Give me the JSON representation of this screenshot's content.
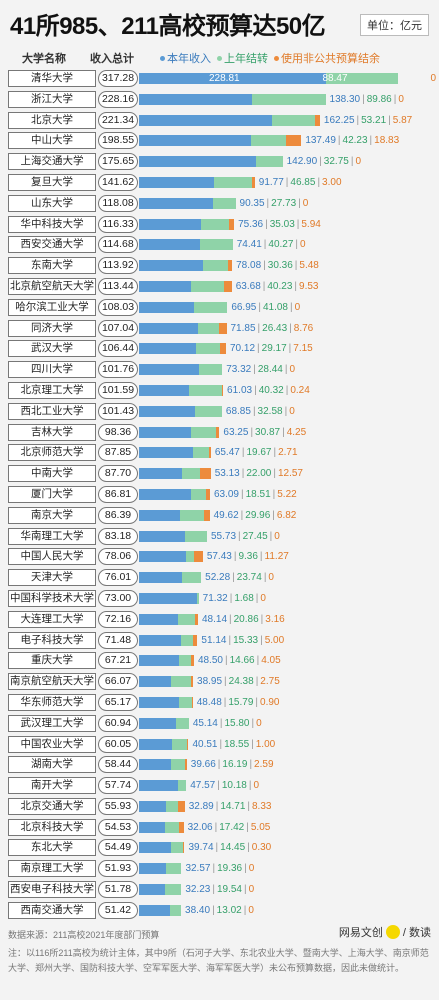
{
  "title": "41所985、211高校预算达50亿",
  "unit": "单位：亿元",
  "headers": {
    "name": "大学名称",
    "total": "收入总计"
  },
  "legend": [
    {
      "label": "本年收入",
      "color": "#5b9bd5",
      "text_color": "#3a7bbd"
    },
    {
      "label": "上年结转",
      "color": "#8fd3a8",
      "text_color": "#36a06a"
    },
    {
      "label": "使用非公共预算结余",
      "color": "#ed8b3c",
      "text_color": "#e07a28"
    }
  ],
  "chart_data": {
    "type": "bar",
    "stacked": true,
    "orientation": "horizontal",
    "unit": "亿元",
    "series": [
      {
        "name": "本年收入",
        "color": "#5b9bd5"
      },
      {
        "name": "上年结转",
        "color": "#8fd3a8"
      },
      {
        "name": "使用非公共预算结余",
        "color": "#ed8b3c"
      }
    ],
    "rows": [
      {
        "name": "清华大学",
        "total": "317.28",
        "income": 228.81,
        "carry": 88.47,
        "surplus": 0,
        "income_label": "228.81",
        "carry_label": "88.47",
        "surplus_label": "0"
      },
      {
        "name": "浙江大学",
        "total": "228.16",
        "income": 138.3,
        "carry": 89.86,
        "surplus": 0,
        "income_label": "138.30",
        "carry_label": "89.86",
        "surplus_label": "0"
      },
      {
        "name": "北京大学",
        "total": "221.34",
        "income": 162.25,
        "carry": 53.21,
        "surplus": 5.87,
        "income_label": "162.25",
        "carry_label": "53.21",
        "surplus_label": "5.87"
      },
      {
        "name": "中山大学",
        "total": "198.55",
        "income": 137.49,
        "carry": 42.23,
        "surplus": 18.83,
        "income_label": "137.49",
        "carry_label": "42.23",
        "surplus_label": "18.83"
      },
      {
        "name": "上海交通大学",
        "total": "175.65",
        "income": 142.9,
        "carry": 32.75,
        "surplus": 0,
        "income_label": "142.90",
        "carry_label": "32.75",
        "surplus_label": "0"
      },
      {
        "name": "复旦大学",
        "total": "141.62",
        "income": 91.77,
        "carry": 46.85,
        "surplus": 3.0,
        "income_label": "91.77",
        "carry_label": "46.85",
        "surplus_label": "3.00"
      },
      {
        "name": "山东大学",
        "total": "118.08",
        "income": 90.35,
        "carry": 27.73,
        "surplus": 0,
        "income_label": "90.35",
        "carry_label": "27.73",
        "surplus_label": "0"
      },
      {
        "name": "华中科技大学",
        "total": "116.33",
        "income": 75.36,
        "carry": 35.03,
        "surplus": 5.94,
        "income_label": "75.36",
        "carry_label": "35.03",
        "surplus_label": "5.94"
      },
      {
        "name": "西安交通大学",
        "total": "114.68",
        "income": 74.41,
        "carry": 40.27,
        "surplus": 0,
        "income_label": "74.41",
        "carry_label": "40.27",
        "surplus_label": "0"
      },
      {
        "name": "东南大学",
        "total": "113.92",
        "income": 78.08,
        "carry": 30.36,
        "surplus": 5.48,
        "income_label": "78.08",
        "carry_label": "30.36",
        "surplus_label": "5.48"
      },
      {
        "name": "北京航空航天大学",
        "total": "113.44",
        "income": 63.68,
        "carry": 40.23,
        "surplus": 9.53,
        "income_label": "63.68",
        "carry_label": "40.23",
        "surplus_label": "9.53"
      },
      {
        "name": "哈尔滨工业大学",
        "total": "108.03",
        "income": 66.95,
        "carry": 41.08,
        "surplus": 0,
        "income_label": "66.95",
        "carry_label": "41.08",
        "surplus_label": "0"
      },
      {
        "name": "同济大学",
        "total": "107.04",
        "income": 71.85,
        "carry": 26.43,
        "surplus": 8.76,
        "income_label": "71.85",
        "carry_label": "26.43",
        "surplus_label": "8.76"
      },
      {
        "name": "武汉大学",
        "total": "106.44",
        "income": 70.12,
        "carry": 29.17,
        "surplus": 7.15,
        "income_label": "70.12",
        "carry_label": "29.17",
        "surplus_label": "7.15"
      },
      {
        "name": "四川大学",
        "total": "101.76",
        "income": 73.32,
        "carry": 28.44,
        "surplus": 0,
        "income_label": "73.32",
        "carry_label": "28.44",
        "surplus_label": "0"
      },
      {
        "name": "北京理工大学",
        "total": "101.59",
        "income": 61.03,
        "carry": 40.32,
        "surplus": 0.24,
        "income_label": "61.03",
        "carry_label": "40.32",
        "surplus_label": "0.24"
      },
      {
        "name": "西北工业大学",
        "total": "101.43",
        "income": 68.85,
        "carry": 32.58,
        "surplus": 0,
        "income_label": "68.85",
        "carry_label": "32.58",
        "surplus_label": "0"
      },
      {
        "name": "吉林大学",
        "total": "98.36",
        "income": 63.25,
        "carry": 30.87,
        "surplus": 4.25,
        "income_label": "63.25",
        "carry_label": "30.87",
        "surplus_label": "4.25"
      },
      {
        "name": "北京师范大学",
        "total": "87.85",
        "income": 65.47,
        "carry": 19.67,
        "surplus": 2.71,
        "income_label": "65.47",
        "carry_label": "19.67",
        "surplus_label": "2.71"
      },
      {
        "name": "中南大学",
        "total": "87.70",
        "income": 53.13,
        "carry": 22.0,
        "surplus": 12.57,
        "income_label": "53.13",
        "carry_label": "22.00",
        "surplus_label": "12.57"
      },
      {
        "name": "厦门大学",
        "total": "86.81",
        "income": 63.09,
        "carry": 18.51,
        "surplus": 5.22,
        "income_label": "63.09",
        "carry_label": "18.51",
        "surplus_label": "5.22"
      },
      {
        "name": "南京大学",
        "total": "86.39",
        "income": 49.62,
        "carry": 29.96,
        "surplus": 6.82,
        "income_label": "49.62",
        "carry_label": "29.96",
        "surplus_label": "6.82"
      },
      {
        "name": "华南理工大学",
        "total": "83.18",
        "income": 55.73,
        "carry": 27.45,
        "surplus": 0,
        "income_label": "55.73",
        "carry_label": "27.45",
        "surplus_label": "0"
      },
      {
        "name": "中国人民大学",
        "total": "78.06",
        "income": 57.43,
        "carry": 9.36,
        "surplus": 11.27,
        "income_label": "57.43",
        "carry_label": "9.36",
        "surplus_label": "11.27"
      },
      {
        "name": "天津大学",
        "total": "76.01",
        "income": 52.28,
        "carry": 23.74,
        "surplus": 0,
        "income_label": "52.28",
        "carry_label": "23.74",
        "surplus_label": "0"
      },
      {
        "name": "中国科学技术大学",
        "total": "73.00",
        "income": 71.32,
        "carry": 1.68,
        "surplus": 0,
        "income_label": "71.32",
        "carry_label": "1.68",
        "surplus_label": "0"
      },
      {
        "name": "大连理工大学",
        "total": "72.16",
        "income": 48.14,
        "carry": 20.86,
        "surplus": 3.16,
        "income_label": "48.14",
        "carry_label": "20.86",
        "surplus_label": "3.16"
      },
      {
        "name": "电子科技大学",
        "total": "71.48",
        "income": 51.14,
        "carry": 15.33,
        "surplus": 5.0,
        "income_label": "51.14",
        "carry_label": "15.33",
        "surplus_label": "5.00"
      },
      {
        "name": "重庆大学",
        "total": "67.21",
        "income": 48.5,
        "carry": 14.66,
        "surplus": 4.05,
        "income_label": "48.50",
        "carry_label": "14.66",
        "surplus_label": "4.05"
      },
      {
        "name": "南京航空航天大学",
        "total": "66.07",
        "income": 38.95,
        "carry": 24.38,
        "surplus": 2.75,
        "income_label": "38.95",
        "carry_label": "24.38",
        "surplus_label": "2.75"
      },
      {
        "name": "华东师范大学",
        "total": "65.17",
        "income": 48.48,
        "carry": 15.79,
        "surplus": 0.9,
        "income_label": "48.48",
        "carry_label": "15.79",
        "surplus_label": "0.90"
      },
      {
        "name": "武汉理工大学",
        "total": "60.94",
        "income": 45.14,
        "carry": 15.8,
        "surplus": 0,
        "income_label": "45.14",
        "carry_label": "15.80",
        "surplus_label": "0"
      },
      {
        "name": "中国农业大学",
        "total": "60.05",
        "income": 40.51,
        "carry": 18.55,
        "surplus": 1.0,
        "income_label": "40.51",
        "carry_label": "18.55",
        "surplus_label": "1.00"
      },
      {
        "name": "湖南大学",
        "total": "58.44",
        "income": 39.66,
        "carry": 16.19,
        "surplus": 2.59,
        "income_label": "39.66",
        "carry_label": "16.19",
        "surplus_label": "2.59"
      },
      {
        "name": "南开大学",
        "total": "57.74",
        "income": 47.57,
        "carry": 10.18,
        "surplus": 0,
        "income_label": "47.57",
        "carry_label": "10.18",
        "surplus_label": "0"
      },
      {
        "name": "北京交通大学",
        "total": "55.93",
        "income": 32.89,
        "carry": 14.71,
        "surplus": 8.33,
        "income_label": "32.89",
        "carry_label": "14.71",
        "surplus_label": "8.33"
      },
      {
        "name": "北京科技大学",
        "total": "54.53",
        "income": 32.06,
        "carry": 17.42,
        "surplus": 5.05,
        "income_label": "32.06",
        "carry_label": "17.42",
        "surplus_label": "5.05"
      },
      {
        "name": "东北大学",
        "total": "54.49",
        "income": 39.74,
        "carry": 14.45,
        "surplus": 0.3,
        "income_label": "39.74",
        "carry_label": "14.45",
        "surplus_label": "0.30"
      },
      {
        "name": "南京理工大学",
        "total": "51.93",
        "income": 32.57,
        "carry": 19.36,
        "surplus": 0,
        "income_label": "32.57",
        "carry_label": "19.36",
        "surplus_label": "0"
      },
      {
        "name": "西安电子科技大学",
        "total": "51.78",
        "income": 32.23,
        "carry": 19.54,
        "surplus": 0,
        "income_label": "32.23",
        "carry_label": "19.54",
        "surplus_label": "0"
      },
      {
        "name": "西南交通大学",
        "total": "51.42",
        "income": 38.4,
        "carry": 13.02,
        "surplus": 0,
        "income_label": "38.40",
        "carry_label": "13.02",
        "surplus_label": "0"
      }
    ]
  },
  "footer": {
    "source": "数据来源：211高校2021年度部门预算",
    "note": "注：以116所211高校为统计主体，其中9所（石河子大学、东北农业大学、暨南大学、上海大学、南京师范大学、郑州大学、国防科技大学、空军军医大学、海军军医大学）未公布预算数据，因此未做统计。",
    "brand_left": "网易文创",
    "brand_right": "/ 数读"
  }
}
